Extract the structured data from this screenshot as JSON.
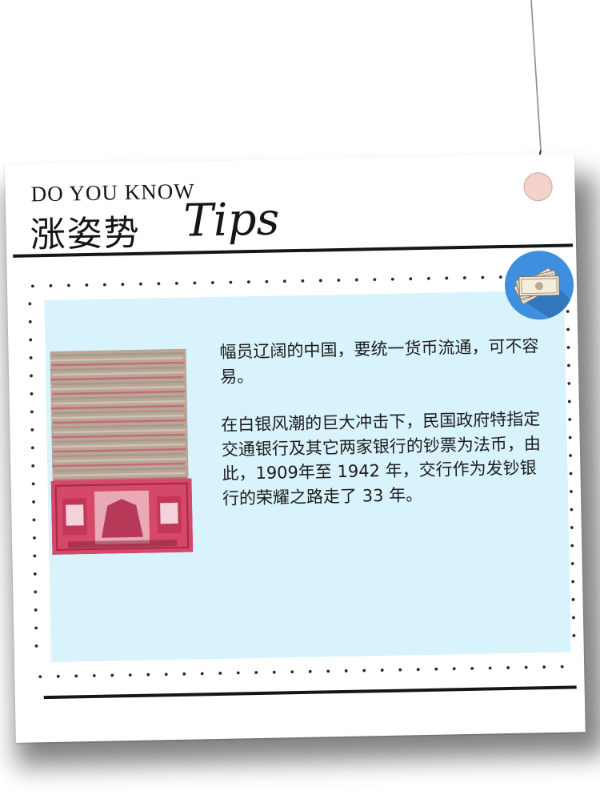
{
  "header": {
    "kicker": "DO YOU KNOW",
    "title": "涨姿势",
    "script": "Tips"
  },
  "content": {
    "paragraphs": [
      "幅员辽阔的中国，要统一货币流通，可不容易。",
      "在白银风潮的巨大冲击下，民国政府特指定交通银行及其它两家银行的钞票为法币，由此，1909年至 1942 年，交行作为发钞银行的荣耀之路走了 33 年。"
    ]
  },
  "icons": {
    "badge": "banknotes-icon",
    "image": "banknote-stack-image"
  },
  "colors": {
    "panel": "#d9f3fd",
    "badge": "#3f8fe0",
    "note_red": "#d5486a"
  }
}
